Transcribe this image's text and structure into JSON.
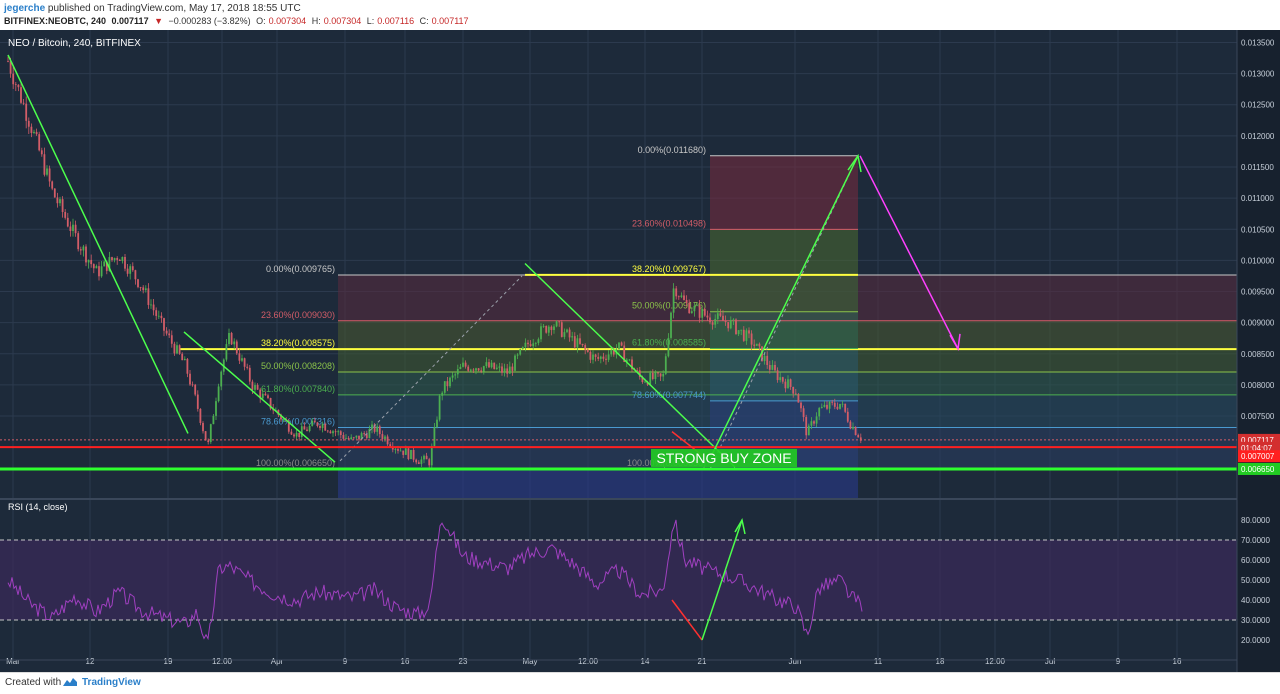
{
  "header": {
    "author": "jegerche",
    "published_text": "published on TradingView.com, May 17, 2018 18:55 UTC",
    "symbol": "BITFINEX:NEOBTC, 240",
    "last": "0.007117",
    "change_arrow": "▼",
    "change": "−0.000283 (−3.82%)",
    "open_label": "O:",
    "open": "0.007304",
    "high_label": "H:",
    "high": "0.007304",
    "low_label": "L:",
    "low": "0.007116",
    "close_label": "C:",
    "close": "0.007117"
  },
  "footer": {
    "created_with": "Created with",
    "brand": "TradingView",
    "icon": "tradingview-logo-icon"
  },
  "colors": {
    "background": "#1d2a3a",
    "grid": "#2c3a4e",
    "bull": "#4caf50",
    "bear": "#d35d68",
    "trendline": "#4cff4c",
    "support_red": "#ff2020",
    "support_green": "#2eff2e",
    "rsi": "#a040c0",
    "fib_yellow": "#ffff40",
    "magenta_arrow": "#ff40ff",
    "buy_zone": "#22cc22"
  },
  "chart_data": [
    {
      "type": "candlestick",
      "title": "NEO / Bitcoin, 240, BITFINEX",
      "ylim": [
        0.0062,
        0.0137
      ],
      "y_ticks": [
        "0.013500",
        "0.013000",
        "0.012500",
        "0.012000",
        "0.011500",
        "0.011000",
        "0.010500",
        "0.010000",
        "0.009500",
        "0.009000",
        "0.008500",
        "0.008000",
        "0.007500"
      ],
      "x_ticks": [
        "Mar",
        "12",
        "19",
        "12:00",
        "Apr",
        "9",
        "16",
        "23",
        "May",
        "12:00",
        "14",
        "21",
        "Jun",
        "11",
        "18",
        "12:00",
        "Jul",
        "9",
        "16"
      ],
      "price_tags": [
        {
          "label": "0.007117",
          "value": 0.007117,
          "color": "#d32f2f"
        },
        {
          "label": "01:04:07",
          "value": 0.00699,
          "color": "#d32f2f"
        },
        {
          "label": "0.007007",
          "value": 0.006855,
          "color": "#ff2020"
        },
        {
          "label": "0.006650",
          "value": 0.00665,
          "color": "#22cc22"
        }
      ],
      "path_points": [
        [
          "Mar 1",
          0.0132
        ],
        [
          "Mar 3",
          0.0122
        ],
        [
          "Mar 5",
          0.0111
        ],
        [
          "Mar 7",
          0.0104
        ],
        [
          "Mar 9",
          0.0098
        ],
        [
          "Mar 11",
          0.0101
        ],
        [
          "Mar 13",
          0.0096
        ],
        [
          "Mar 15",
          0.0089
        ],
        [
          "Mar 17",
          0.0083
        ],
        [
          "Mar 18",
          0.0077
        ],
        [
          "Mar 19",
          0.007
        ],
        [
          "Mar 20",
          0.0081
        ],
        [
          "Mar 21",
          0.0088
        ],
        [
          "Mar 23",
          0.008
        ],
        [
          "Mar 25",
          0.0076
        ],
        [
          "Mar 27",
          0.0072
        ],
        [
          "Mar 29",
          0.0074
        ],
        [
          "Apr 1",
          0.0071
        ],
        [
          "Apr 3",
          0.0073
        ],
        [
          "Apr 5",
          0.007
        ],
        [
          "Apr 7",
          0.0068
        ],
        [
          "Apr 8",
          0.00677
        ],
        [
          "Apr 9",
          0.0079
        ],
        [
          "Apr 11",
          0.0083
        ],
        [
          "Apr 13",
          0.0083
        ],
        [
          "Apr 15",
          0.0082
        ],
        [
          "Apr 17",
          0.0087
        ],
        [
          "Apr 19",
          0.009
        ],
        [
          "Apr 21",
          0.0087
        ],
        [
          "Apr 23",
          0.0084
        ],
        [
          "Apr 25",
          0.0086
        ],
        [
          "Apr 27",
          0.0081
        ],
        [
          "Apr 29",
          0.0081
        ],
        [
          "Apr 30",
          0.0096
        ],
        [
          "May 1",
          0.0093
        ],
        [
          "May 3",
          0.0091
        ],
        [
          "May 5",
          0.009
        ],
        [
          "May 7",
          0.0087
        ],
        [
          "May 9",
          0.0082
        ],
        [
          "May 11",
          0.0079
        ],
        [
          "May 12",
          0.0072
        ],
        [
          "May 13",
          0.0076
        ],
        [
          "May 15",
          0.0077
        ],
        [
          "May 16",
          0.00735
        ],
        [
          "May 17",
          0.00712
        ]
      ],
      "fib_left": {
        "color": "#ffff40",
        "levels": [
          {
            "label": "0.00%(0.009765)",
            "value": 0.009765
          },
          {
            "label": "23.60%(0.009030)",
            "value": 0.00903
          },
          {
            "label": "38.20%(0.008575)",
            "value": 0.008575
          },
          {
            "label": "50.00%(0.008208)",
            "value": 0.008208
          },
          {
            "label": "61.80%(0.007840)",
            "value": 0.00784
          },
          {
            "label": "78.60%(0.007316)",
            "value": 0.007316
          },
          {
            "label": "100.00%(0.006650)",
            "value": 0.00665
          }
        ]
      },
      "fib_right": {
        "levels": [
          {
            "label": "0.00%(0.011680)",
            "value": 0.01168
          },
          {
            "label": "23.60%(0.010498)",
            "value": 0.010498
          },
          {
            "label": "38.20%(0.009767)",
            "value": 0.009767
          },
          {
            "label": "50.00%(0.009176)",
            "value": 0.009176
          },
          {
            "label": "61.80%(0.008585)",
            "value": 0.008585
          },
          {
            "label": "78.60%(0.007744)",
            "value": 0.007744
          },
          {
            "label": "100.00%(0.006650)",
            "value": 0.00665
          }
        ]
      },
      "annotation": "STRONG BUY ZONE"
    },
    {
      "type": "line",
      "title": "RSI (14, close)",
      "ylim": [
        10,
        90
      ],
      "y_ticks": [
        "80.0000",
        "70.0000",
        "60.0000",
        "50.0000",
        "40.0000",
        "30.0000",
        "20.0000"
      ],
      "bands": [
        30,
        70
      ],
      "rsi_points": [
        [
          "Mar 1",
          50
        ],
        [
          "Mar 3",
          38
        ],
        [
          "Mar 5",
          31
        ],
        [
          "Mar 7",
          42
        ],
        [
          "Mar 9",
          34
        ],
        [
          "Mar 11",
          44
        ],
        [
          "Mar 13",
          35
        ],
        [
          "Mar 15",
          31
        ],
        [
          "Mar 17",
          28
        ],
        [
          "Mar 18",
          34
        ],
        [
          "Mar 19",
          17
        ],
        [
          "Mar 20",
          56
        ],
        [
          "Mar 21",
          57
        ],
        [
          "Mar 23",
          49
        ],
        [
          "Mar 25",
          43
        ],
        [
          "Mar 27",
          40
        ],
        [
          "Mar 29",
          44
        ],
        [
          "Apr 1",
          41
        ],
        [
          "Apr 3",
          45
        ],
        [
          "Apr 5",
          36
        ],
        [
          "Apr 7",
          33
        ],
        [
          "Apr 8",
          37
        ],
        [
          "Apr 9",
          83
        ],
        [
          "Apr 11",
          62
        ],
        [
          "Apr 13",
          59
        ],
        [
          "Apr 15",
          56
        ],
        [
          "Apr 17",
          63
        ],
        [
          "Apr 19",
          66
        ],
        [
          "Apr 21",
          58
        ],
        [
          "Apr 23",
          48
        ],
        [
          "Apr 25",
          55
        ],
        [
          "Apr 27",
          43
        ],
        [
          "Apr 29",
          45
        ],
        [
          "Apr 30",
          80
        ],
        [
          "May 1",
          60
        ],
        [
          "May 3",
          55
        ],
        [
          "May 5",
          52
        ],
        [
          "May 7",
          47
        ],
        [
          "May 9",
          41
        ],
        [
          "May 11",
          37
        ],
        [
          "May 12",
          22
        ],
        [
          "May 13",
          46
        ],
        [
          "May 15",
          50
        ],
        [
          "May 16",
          41
        ],
        [
          "May 17",
          38
        ]
      ]
    }
  ]
}
